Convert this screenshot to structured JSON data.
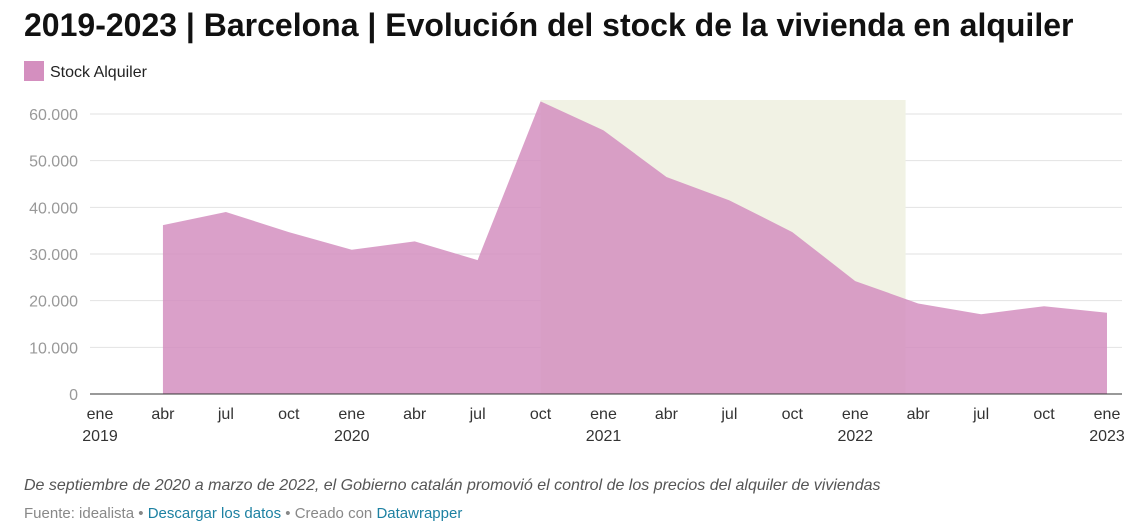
{
  "chart_data": {
    "type": "area",
    "title": "2019-2023 | Barcelona | Evolución del stock de la vivienda en alquiler",
    "categories": [
      "ene",
      "abr",
      "jul",
      "oct",
      "ene",
      "abr",
      "jul",
      "oct",
      "ene",
      "abr",
      "jul",
      "oct",
      "ene",
      "abr",
      "jul",
      "oct",
      "ene"
    ],
    "year_labels": [
      "2019",
      null,
      null,
      null,
      "2020",
      null,
      null,
      null,
      "2021",
      null,
      null,
      null,
      "2022",
      null,
      null,
      null,
      "2023"
    ],
    "series": [
      {
        "name": "Stock Alquiler",
        "color": "#d48fbf",
        "values": [
          null,
          36200,
          39000,
          34700,
          30900,
          32700,
          28700,
          62700,
          56500,
          46500,
          41500,
          34700,
          24200,
          19400,
          17100,
          18800,
          17400
        ]
      }
    ],
    "highlight_range": [
      7,
      12.8
    ],
    "highlight_color": "#f1f2e4",
    "ylim": [
      0,
      63000
    ],
    "yticks": [
      0,
      {
        "value": 10000,
        "label": "10.000"
      },
      {
        "value": 20000,
        "label": "20.000"
      },
      {
        "value": 30000,
        "label": "30.000"
      },
      {
        "value": 40000,
        "label": "40.000"
      },
      {
        "value": 50000,
        "label": "50.000"
      },
      {
        "value": 60000,
        "label": "60.000"
      }
    ],
    "grid": true,
    "note": "De septiembre de 2020 a marzo de 2022, el Gobierno catalán promovió el control de los precios del alquiler de viviendas",
    "source": "Fuente: idealista",
    "separator": "•",
    "download": "Descargar los datos",
    "credit": "Creado con",
    "credit_link": "Datawrapper"
  }
}
